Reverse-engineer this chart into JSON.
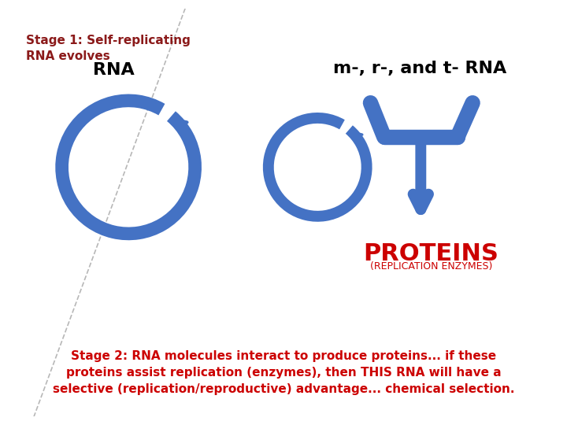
{
  "bg_color": "#ffffff",
  "stage1_text": "Stage 1: Self-replicating\nRNA evolves",
  "stage1_color": "#8B1A1A",
  "stage1_fontsize": 11,
  "rna_label": "RNA",
  "rna_label_color": "#000000",
  "rna_label_fontsize": 16,
  "mrna_label": "m-, r-, and t- RNA",
  "mrna_label_color": "#000000",
  "mrna_label_fontsize": 16,
  "proteins_label": "PROTEINS",
  "proteins_color": "#CC0000",
  "proteins_fontsize": 22,
  "replication_label": "(REPLICATION ENZYMES)",
  "replication_color": "#CC0000",
  "replication_fontsize": 9,
  "stage2_text": "Stage 2: RNA molecules interact to produce proteins... if these\nproteins assist replication (enzymes), then THIS RNA will have a\nselective (replication/reproductive) advantage... chemical selection.",
  "stage2_color": "#CC0000",
  "stage2_fontsize": 11,
  "arrow_color": "#4472C4",
  "divider_color": "#999999"
}
